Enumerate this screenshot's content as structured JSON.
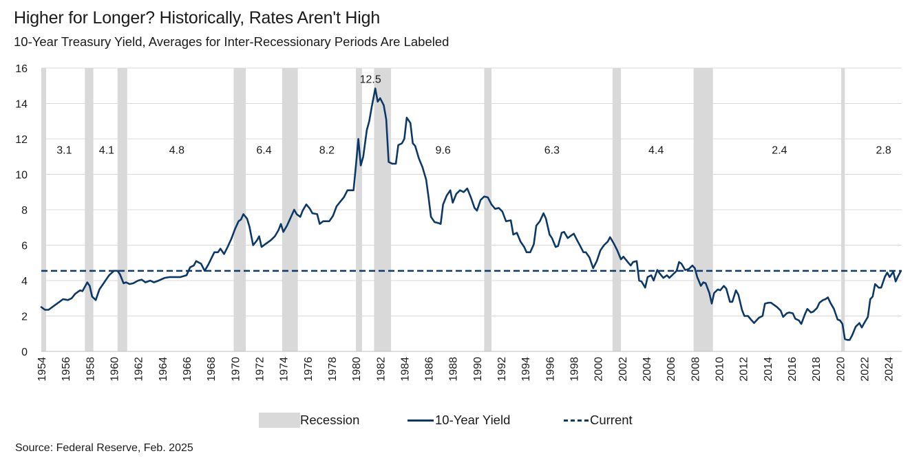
{
  "title": "Higher for Longer? Historically, Rates Aren't High",
  "subtitle": "10-Year Treasury Yield, Averages for Inter-Recessionary Periods Are Labeled",
  "source": "Source: Federal Reserve, Feb. 2025",
  "colors": {
    "line": "#0b3866",
    "recession": "#d9d9d9",
    "grid": "#d9d9d9"
  },
  "legend": {
    "recession": "Recession",
    "yield": "10-Year Yield",
    "current": "Current"
  },
  "chart_data": {
    "type": "line",
    "xlim": [
      1954,
      2025.1
    ],
    "ylim": [
      0,
      16
    ],
    "yticks": [
      0,
      2,
      4,
      6,
      8,
      10,
      12,
      14,
      16
    ],
    "xticks": [
      "1954",
      "1956",
      "1958",
      "1960",
      "1962",
      "1964",
      "1966",
      "1968",
      "1970",
      "1972",
      "1974",
      "1976",
      "1978",
      "1980",
      "1982",
      "1984",
      "1986",
      "1988",
      "1990",
      "1992",
      "1994",
      "1996",
      "1998",
      "2000",
      "2002",
      "2004",
      "2006",
      "2008",
      "2010",
      "2012",
      "2014",
      "2016",
      "2018",
      "2020",
      "2022",
      "2024"
    ],
    "grid": true,
    "legend_position": "bottom",
    "current_value": 4.55,
    "recessions": [
      [
        1953.6,
        1954.4
      ],
      [
        1957.6,
        1958.3
      ],
      [
        1960.3,
        1961.1
      ],
      [
        1969.9,
        1970.9
      ],
      [
        1973.9,
        1975.2
      ],
      [
        1980.0,
        1980.5
      ],
      [
        1981.5,
        1982.9
      ],
      [
        1990.6,
        1991.2
      ],
      [
        2001.2,
        2001.9
      ],
      [
        2007.9,
        2009.5
      ],
      [
        2020.1,
        2020.4
      ]
    ],
    "averages": [
      {
        "label": "3.1",
        "x": 1955.9,
        "y": 11.4
      },
      {
        "label": "4.1",
        "x": 1959.4,
        "y": 11.4
      },
      {
        "label": "4.8",
        "x": 1965.2,
        "y": 11.4
      },
      {
        "label": "6.4",
        "x": 1972.4,
        "y": 11.4
      },
      {
        "label": "8.2",
        "x": 1977.6,
        "y": 11.4
      },
      {
        "label": "12.5",
        "x": 1981.2,
        "y": 15.4
      },
      {
        "label": "9.6",
        "x": 1987.2,
        "y": 11.4
      },
      {
        "label": "6.3",
        "x": 1996.2,
        "y": 11.4
      },
      {
        "label": "4.4",
        "x": 2004.8,
        "y": 11.4
      },
      {
        "label": "2.4",
        "x": 2015.0,
        "y": 11.4
      },
      {
        "label": "2.8",
        "x": 2023.6,
        "y": 11.4
      }
    ],
    "series": [
      {
        "name": "10-Year Yield",
        "points": [
          [
            1954.0,
            2.5
          ],
          [
            1954.3,
            2.35
          ],
          [
            1954.6,
            2.35
          ],
          [
            1955.0,
            2.55
          ],
          [
            1955.5,
            2.8
          ],
          [
            1955.8,
            2.95
          ],
          [
            1956.2,
            2.9
          ],
          [
            1956.5,
            3.0
          ],
          [
            1956.8,
            3.25
          ],
          [
            1957.2,
            3.45
          ],
          [
            1957.4,
            3.4
          ],
          [
            1957.8,
            3.9
          ],
          [
            1958.0,
            3.7
          ],
          [
            1958.2,
            3.1
          ],
          [
            1958.5,
            2.9
          ],
          [
            1958.8,
            3.5
          ],
          [
            1959.2,
            3.9
          ],
          [
            1959.6,
            4.3
          ],
          [
            1960.0,
            4.55
          ],
          [
            1960.3,
            4.55
          ],
          [
            1960.5,
            4.35
          ],
          [
            1960.8,
            3.85
          ],
          [
            1961.0,
            3.9
          ],
          [
            1961.3,
            3.8
          ],
          [
            1961.6,
            3.85
          ],
          [
            1962.0,
            4.0
          ],
          [
            1962.3,
            4.05
          ],
          [
            1962.6,
            3.9
          ],
          [
            1963.0,
            4.0
          ],
          [
            1963.3,
            3.9
          ],
          [
            1963.7,
            4.0
          ],
          [
            1964.2,
            4.15
          ],
          [
            1964.6,
            4.2
          ],
          [
            1965.0,
            4.2
          ],
          [
            1965.5,
            4.2
          ],
          [
            1966.0,
            4.3
          ],
          [
            1966.3,
            4.75
          ],
          [
            1966.6,
            4.85
          ],
          [
            1966.8,
            5.1
          ],
          [
            1967.2,
            4.95
          ],
          [
            1967.5,
            4.55
          ],
          [
            1967.8,
            4.9
          ],
          [
            1968.3,
            5.6
          ],
          [
            1968.6,
            5.6
          ],
          [
            1968.8,
            5.8
          ],
          [
            1969.1,
            5.5
          ],
          [
            1969.4,
            5.9
          ],
          [
            1969.7,
            6.35
          ],
          [
            1970.0,
            6.9
          ],
          [
            1970.3,
            7.35
          ],
          [
            1970.5,
            7.45
          ],
          [
            1970.7,
            7.75
          ],
          [
            1971.0,
            7.5
          ],
          [
            1971.2,
            7.05
          ],
          [
            1971.5,
            6.0
          ],
          [
            1971.8,
            6.25
          ],
          [
            1972.0,
            6.5
          ],
          [
            1972.2,
            5.9
          ],
          [
            1972.5,
            6.05
          ],
          [
            1972.8,
            6.2
          ],
          [
            1973.0,
            6.3
          ],
          [
            1973.3,
            6.5
          ],
          [
            1973.6,
            6.85
          ],
          [
            1973.8,
            7.2
          ],
          [
            1974.0,
            6.75
          ],
          [
            1974.3,
            7.1
          ],
          [
            1974.6,
            7.55
          ],
          [
            1974.9,
            8.0
          ],
          [
            1975.1,
            7.75
          ],
          [
            1975.4,
            7.6
          ],
          [
            1975.6,
            7.95
          ],
          [
            1975.9,
            8.3
          ],
          [
            1976.2,
            8.05
          ],
          [
            1976.4,
            7.8
          ],
          [
            1976.8,
            7.75
          ],
          [
            1977.0,
            7.2
          ],
          [
            1977.3,
            7.35
          ],
          [
            1977.8,
            7.35
          ],
          [
            1978.1,
            7.65
          ],
          [
            1978.4,
            8.2
          ],
          [
            1978.7,
            8.45
          ],
          [
            1979.0,
            8.7
          ],
          [
            1979.3,
            9.1
          ],
          [
            1979.8,
            9.1
          ],
          [
            1980.0,
            10.5
          ],
          [
            1980.2,
            12.0
          ],
          [
            1980.4,
            10.5
          ],
          [
            1980.6,
            11.0
          ],
          [
            1980.9,
            12.5
          ],
          [
            1981.1,
            13.0
          ],
          [
            1981.3,
            13.8
          ],
          [
            1981.6,
            14.85
          ],
          [
            1981.8,
            14.1
          ],
          [
            1982.0,
            14.3
          ],
          [
            1982.3,
            13.9
          ],
          [
            1982.5,
            13.1
          ],
          [
            1982.7,
            10.7
          ],
          [
            1983.0,
            10.6
          ],
          [
            1983.3,
            10.6
          ],
          [
            1983.5,
            11.65
          ],
          [
            1983.8,
            11.75
          ],
          [
            1984.0,
            12.0
          ],
          [
            1984.2,
            13.2
          ],
          [
            1984.5,
            12.9
          ],
          [
            1984.7,
            11.75
          ],
          [
            1984.9,
            11.6
          ],
          [
            1985.2,
            10.9
          ],
          [
            1985.5,
            10.4
          ],
          [
            1985.8,
            9.7
          ],
          [
            1986.0,
            8.7
          ],
          [
            1986.2,
            7.6
          ],
          [
            1986.5,
            7.3
          ],
          [
            1986.8,
            7.25
          ],
          [
            1987.0,
            7.2
          ],
          [
            1987.2,
            8.3
          ],
          [
            1987.5,
            8.8
          ],
          [
            1987.8,
            9.1
          ],
          [
            1988.0,
            8.4
          ],
          [
            1988.3,
            8.9
          ],
          [
            1988.6,
            9.1
          ],
          [
            1988.9,
            9.0
          ],
          [
            1989.2,
            9.2
          ],
          [
            1989.5,
            8.7
          ],
          [
            1989.8,
            8.1
          ],
          [
            1990.0,
            7.95
          ],
          [
            1990.3,
            8.55
          ],
          [
            1990.6,
            8.75
          ],
          [
            1990.9,
            8.7
          ],
          [
            1991.2,
            8.3
          ],
          [
            1991.5,
            8.05
          ],
          [
            1991.8,
            8.1
          ],
          [
            1992.1,
            7.9
          ],
          [
            1992.4,
            7.35
          ],
          [
            1992.8,
            7.4
          ],
          [
            1993.0,
            6.6
          ],
          [
            1993.3,
            6.7
          ],
          [
            1993.6,
            6.2
          ],
          [
            1993.9,
            5.9
          ],
          [
            1994.1,
            5.6
          ],
          [
            1994.4,
            5.6
          ],
          [
            1994.7,
            6.05
          ],
          [
            1994.9,
            7.1
          ],
          [
            1995.2,
            7.35
          ],
          [
            1995.5,
            7.8
          ],
          [
            1995.7,
            7.5
          ],
          [
            1996.0,
            6.6
          ],
          [
            1996.2,
            6.4
          ],
          [
            1996.5,
            5.9
          ],
          [
            1996.7,
            5.95
          ],
          [
            1997.0,
            6.7
          ],
          [
            1997.2,
            6.75
          ],
          [
            1997.5,
            6.4
          ],
          [
            1997.8,
            6.55
          ],
          [
            1998.0,
            6.65
          ],
          [
            1998.3,
            6.25
          ],
          [
            1998.5,
            6.0
          ],
          [
            1998.8,
            5.6
          ],
          [
            1999.0,
            5.6
          ],
          [
            1999.3,
            5.3
          ],
          [
            1999.6,
            4.7
          ],
          [
            1999.9,
            5.1
          ],
          [
            2000.2,
            5.7
          ],
          [
            2000.5,
            6.0
          ],
          [
            2000.8,
            6.2
          ],
          [
            2001.0,
            6.45
          ],
          [
            2001.3,
            6.1
          ],
          [
            2001.6,
            5.7
          ],
          [
            2001.9,
            5.2
          ],
          [
            2002.1,
            5.35
          ],
          [
            2002.4,
            5.1
          ],
          [
            2002.7,
            4.85
          ],
          [
            2002.9,
            5.05
          ],
          [
            2003.2,
            5.1
          ],
          [
            2003.4,
            4.0
          ],
          [
            2003.6,
            3.95
          ],
          [
            2003.9,
            3.6
          ],
          [
            2004.1,
            4.2
          ],
          [
            2004.4,
            4.3
          ],
          [
            2004.6,
            4.0
          ],
          [
            2004.9,
            4.6
          ],
          [
            2005.1,
            4.4
          ],
          [
            2005.4,
            4.15
          ],
          [
            2005.7,
            4.3
          ],
          [
            2005.9,
            4.15
          ],
          [
            2006.2,
            4.35
          ],
          [
            2006.5,
            4.55
          ],
          [
            2006.7,
            5.05
          ],
          [
            2006.9,
            4.95
          ],
          [
            2007.2,
            4.6
          ],
          [
            2007.5,
            4.65
          ],
          [
            2007.8,
            4.85
          ],
          [
            2008.0,
            4.7
          ],
          [
            2008.2,
            4.2
          ],
          [
            2008.5,
            3.7
          ],
          [
            2008.7,
            3.9
          ],
          [
            2008.9,
            3.85
          ],
          [
            2009.2,
            3.3
          ],
          [
            2009.4,
            2.7
          ],
          [
            2009.6,
            3.3
          ],
          [
            2009.9,
            3.5
          ],
          [
            2010.1,
            3.45
          ],
          [
            2010.4,
            3.7
          ],
          [
            2010.6,
            3.55
          ],
          [
            2010.9,
            2.8
          ],
          [
            2011.1,
            2.8
          ],
          [
            2011.4,
            3.45
          ],
          [
            2011.6,
            3.2
          ],
          [
            2011.9,
            2.35
          ],
          [
            2012.1,
            2.0
          ],
          [
            2012.4,
            2.0
          ],
          [
            2012.7,
            1.75
          ],
          [
            2012.9,
            1.6
          ],
          [
            2013.1,
            1.75
          ],
          [
            2013.3,
            1.9
          ],
          [
            2013.6,
            2.0
          ],
          [
            2013.8,
            2.7
          ],
          [
            2014.1,
            2.75
          ],
          [
            2014.3,
            2.75
          ],
          [
            2014.6,
            2.6
          ],
          [
            2014.8,
            2.5
          ],
          [
            2015.1,
            2.3
          ],
          [
            2015.3,
            1.95
          ],
          [
            2015.6,
            2.15
          ],
          [
            2015.8,
            2.2
          ],
          [
            2016.1,
            2.15
          ],
          [
            2016.3,
            1.85
          ],
          [
            2016.6,
            1.75
          ],
          [
            2016.8,
            1.55
          ],
          [
            2017.1,
            2.1
          ],
          [
            2017.3,
            2.4
          ],
          [
            2017.6,
            2.2
          ],
          [
            2017.8,
            2.25
          ],
          [
            2018.1,
            2.45
          ],
          [
            2018.3,
            2.75
          ],
          [
            2018.6,
            2.9
          ],
          [
            2018.8,
            2.95
          ],
          [
            2019.0,
            3.05
          ],
          [
            2019.2,
            2.75
          ],
          [
            2019.5,
            2.4
          ],
          [
            2019.8,
            1.8
          ],
          [
            2020.0,
            1.75
          ],
          [
            2020.2,
            1.55
          ],
          [
            2020.4,
            0.7
          ],
          [
            2020.6,
            0.65
          ],
          [
            2020.8,
            0.65
          ],
          [
            2021.0,
            0.9
          ],
          [
            2021.3,
            1.4
          ],
          [
            2021.6,
            1.6
          ],
          [
            2021.8,
            1.35
          ],
          [
            2022.0,
            1.6
          ],
          [
            2022.3,
            1.95
          ],
          [
            2022.5,
            2.95
          ],
          [
            2022.7,
            3.1
          ],
          [
            2022.9,
            3.8
          ],
          [
            2023.2,
            3.6
          ],
          [
            2023.4,
            3.6
          ],
          [
            2023.7,
            4.2
          ],
          [
            2023.9,
            4.45
          ],
          [
            2024.1,
            4.2
          ],
          [
            2024.4,
            4.5
          ],
          [
            2024.6,
            3.95
          ],
          [
            2024.8,
            4.25
          ],
          [
            2025.0,
            4.5
          ]
        ]
      }
    ]
  }
}
